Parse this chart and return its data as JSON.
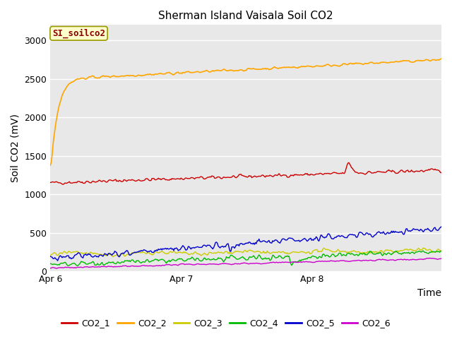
{
  "title": "Sherman Island Vaisala Soil CO2",
  "ylabel": "Soil CO2 (mV)",
  "xlabel": "Time",
  "file_label": "SI_soilco2",
  "x_tick_labels": [
    "Apr 6",
    "Apr 7",
    "Apr 8"
  ],
  "x_tick_positions": [
    0,
    144,
    288
  ],
  "ylim": [
    0,
    3200
  ],
  "yticks": [
    0,
    500,
    1000,
    1500,
    2000,
    2500,
    3000
  ],
  "n_points": 432,
  "series": {
    "CO2_1": {
      "color": "#cc0000"
    },
    "CO2_2": {
      "color": "#ffa500"
    },
    "CO2_3": {
      "color": "#cccc00"
    },
    "CO2_4": {
      "color": "#00bb00"
    },
    "CO2_5": {
      "color": "#0000cc"
    },
    "CO2_6": {
      "color": "#cc00cc"
    }
  },
  "legend_order": [
    "CO2_1",
    "CO2_2",
    "CO2_3",
    "CO2_4",
    "CO2_5",
    "CO2_6"
  ],
  "bg_color": "#e8e8e8",
  "grid_color": "white",
  "title_fontsize": 11,
  "label_fontsize": 10,
  "tick_fontsize": 9,
  "legend_fontsize": 9
}
